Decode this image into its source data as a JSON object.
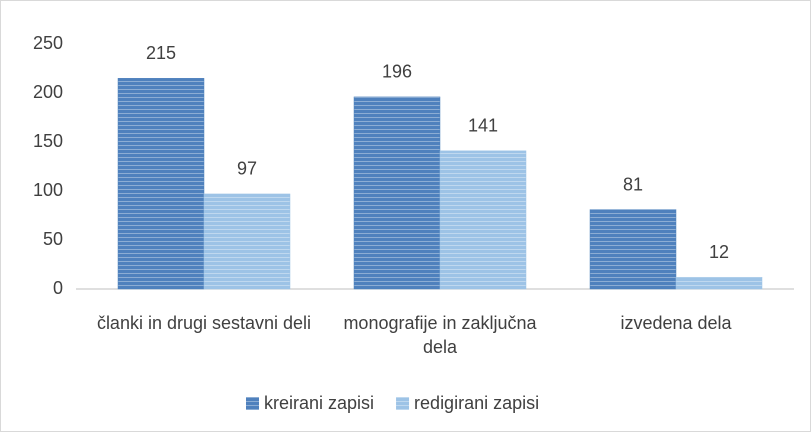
{
  "chart_data": {
    "type": "bar",
    "categories": [
      "članki in drugi sestavni deli",
      "monografije in zaključna dela",
      "izvedena dela"
    ],
    "series": [
      {
        "name": "kreirani zapisi",
        "color": "#4f81bd",
        "values": [
          215,
          196,
          81
        ]
      },
      {
        "name": "redigirani zapisi",
        "color": "#9dc3e6",
        "values": [
          97,
          141,
          12
        ]
      }
    ],
    "ylim": [
      0,
      250
    ],
    "yticks": [
      0,
      50,
      100,
      150,
      200,
      250
    ],
    "grid": false,
    "legend": "bottom"
  }
}
